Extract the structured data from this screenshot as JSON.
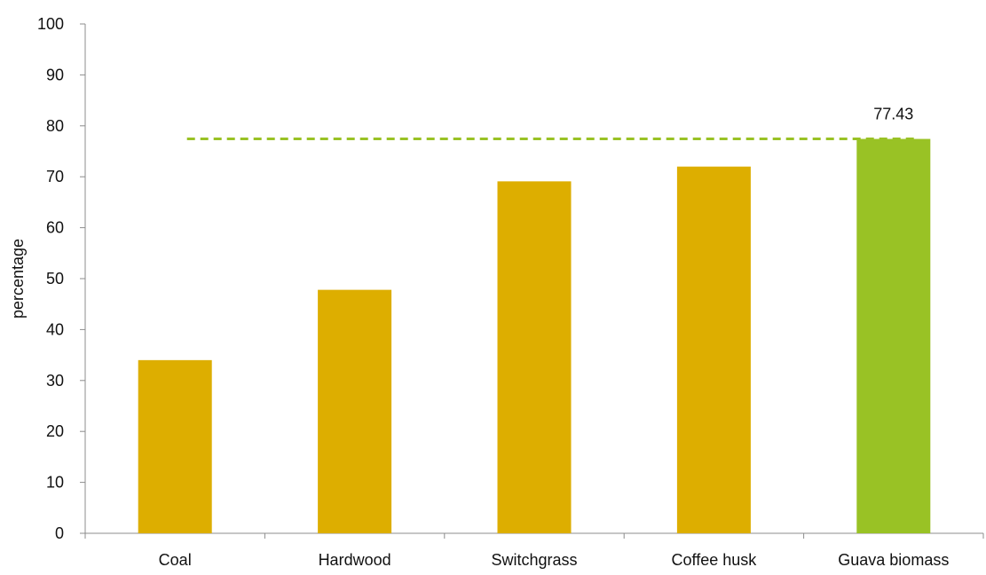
{
  "chart_data": {
    "type": "bar",
    "title": "",
    "xlabel": "",
    "ylabel": "percentage",
    "ylim": [
      0,
      100
    ],
    "yticks": [
      0,
      10,
      20,
      30,
      40,
      50,
      60,
      70,
      80,
      90,
      100
    ],
    "categories": [
      "Coal",
      "Hardwood",
      "Switchgrass",
      "Coffee husk",
      "Guava biomass"
    ],
    "values": [
      34,
      47.8,
      69.1,
      72,
      77.43
    ],
    "highlight_index": 4,
    "data_labels": [
      {
        "category": "Guava biomass",
        "text": "77.43"
      }
    ],
    "reference_line": {
      "value": 77.43,
      "style": "dashed"
    },
    "grid": false,
    "legend": "none",
    "colors": {
      "bar": "#DDAE00",
      "highlight_bar": "#99C225",
      "reference_line": "#99C225",
      "axis": "#8c8c8c",
      "text": "#111111"
    }
  }
}
